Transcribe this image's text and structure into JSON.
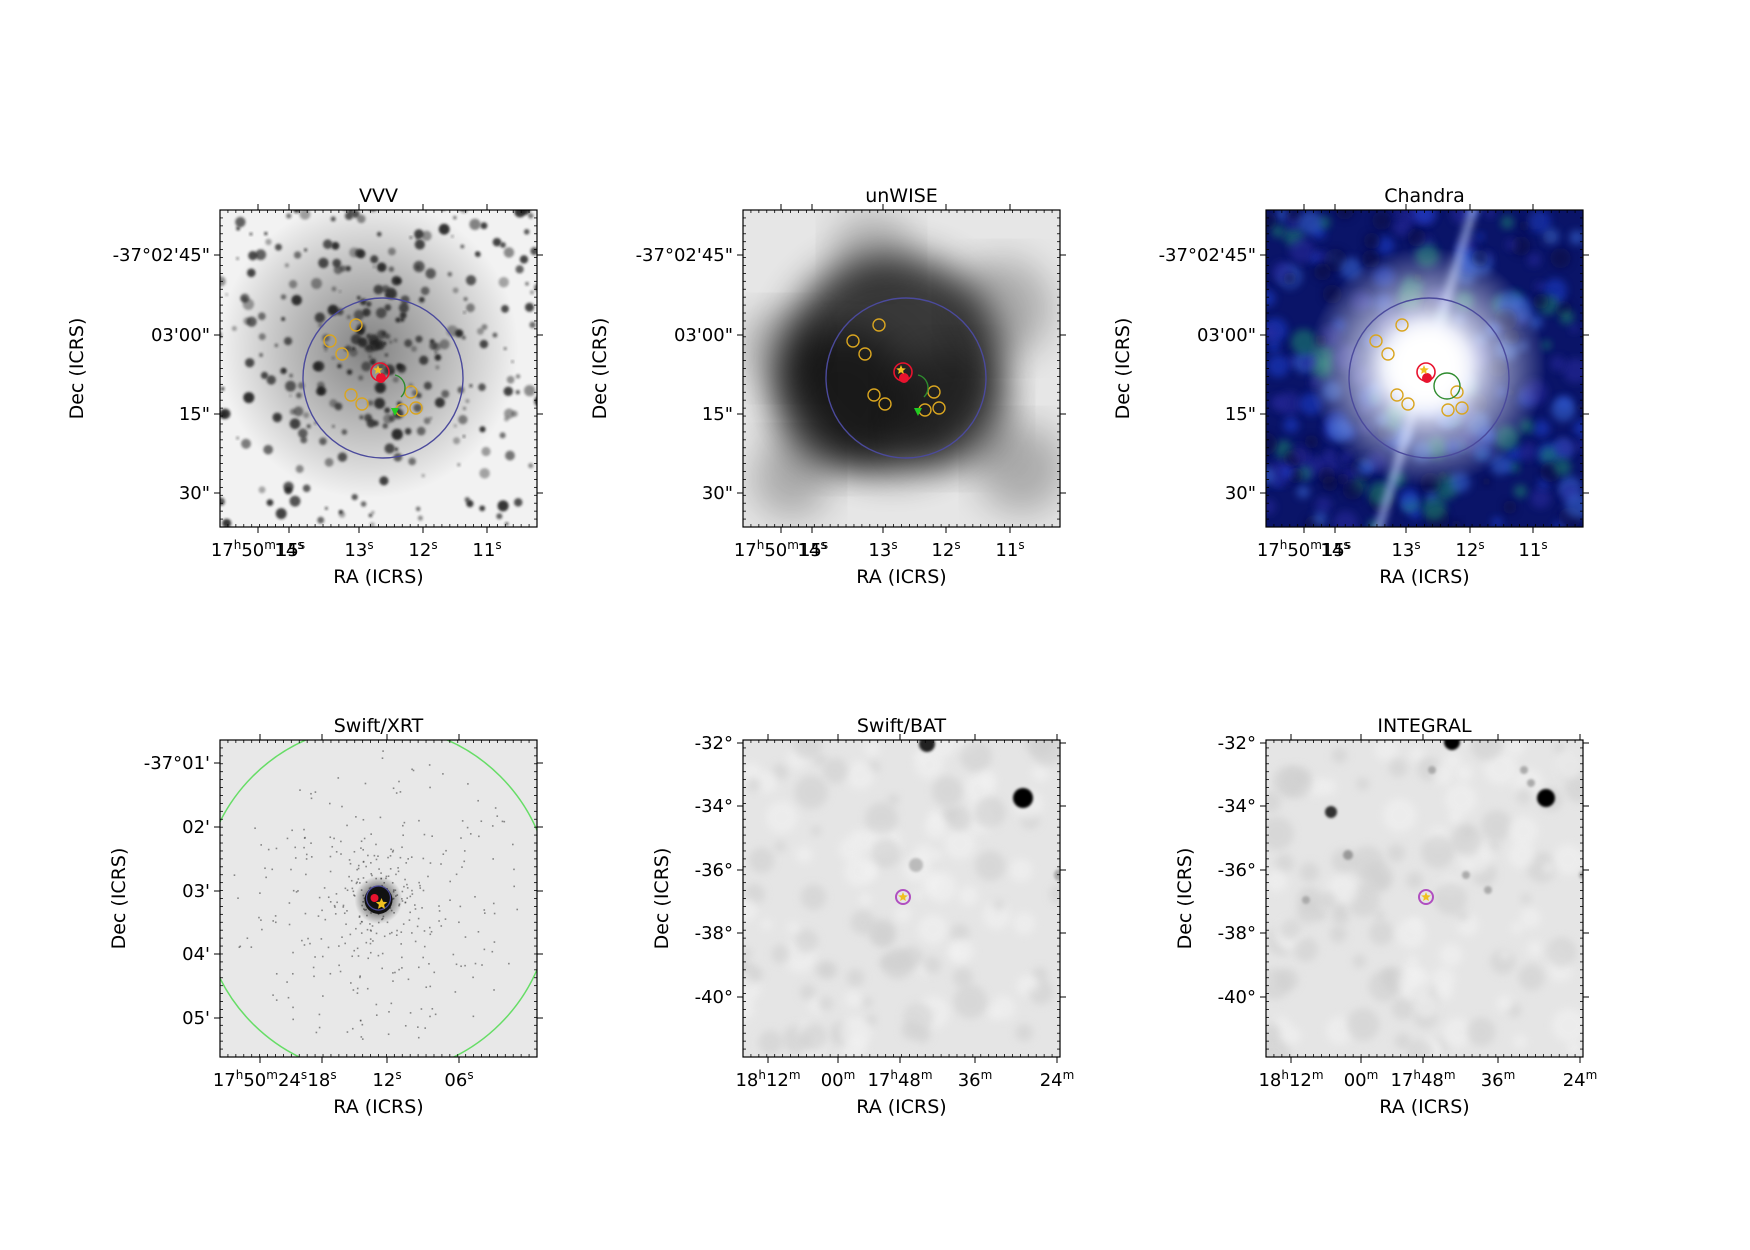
{
  "figure": {
    "panels": [
      {
        "id": "vvv",
        "title": "VVV",
        "style": "optical",
        "xlabel": "RA (ICRS)",
        "ylabel": "Dec (ICRS)",
        "yticks": [
          "-37°02'45\"",
          "03'00\"",
          "15\"",
          "30\""
        ],
        "xticks": [
          {
            "label": "17h50m15s",
            "main": "17",
            "sup1": "h",
            "mid": "50",
            "sup2": "m",
            "tail": "15",
            "sup3": "s"
          },
          {
            "label": "14s",
            "main": "14",
            "sup1": "s"
          },
          {
            "label": "13s",
            "main": "13",
            "sup1": "s"
          },
          {
            "label": "12s",
            "main": "12",
            "sup1": "s"
          },
          {
            "label": "11s",
            "main": "11",
            "sup1": "s"
          }
        ]
      },
      {
        "id": "unwise",
        "title": "unWISE",
        "style": "infrared",
        "xlabel": "RA (ICRS)",
        "ylabel": "Dec (ICRS)",
        "yticks": [
          "-37°02'45\"",
          "03'00\"",
          "15\"",
          "30\""
        ],
        "xticks": [
          {
            "label": "17h50m15s",
            "main": "17",
            "sup1": "h",
            "mid": "50",
            "sup2": "m",
            "tail": "15",
            "sup3": "s"
          },
          {
            "label": "14s",
            "main": "14",
            "sup1": "s"
          },
          {
            "label": "13s",
            "main": "13",
            "sup1": "s"
          },
          {
            "label": "12s",
            "main": "12",
            "sup1": "s"
          },
          {
            "label": "11s",
            "main": "11",
            "sup1": "s"
          }
        ]
      },
      {
        "id": "chandra",
        "title": "Chandra",
        "style": "xray-rgb",
        "xlabel": "RA (ICRS)",
        "ylabel": "Dec (ICRS)",
        "yticks": [
          "-37°02'45\"",
          "03'00\"",
          "15\"",
          "30\""
        ],
        "xticks": [
          {
            "label": "17h50m15s",
            "main": "17",
            "sup1": "h",
            "mid": "50",
            "sup2": "m",
            "tail": "15",
            "sup3": "s"
          },
          {
            "label": "14s",
            "main": "14",
            "sup1": "s"
          },
          {
            "label": "13s",
            "main": "13",
            "sup1": "s"
          },
          {
            "label": "12s",
            "main": "12",
            "sup1": "s"
          },
          {
            "label": "11s",
            "main": "11",
            "sup1": "s"
          }
        ]
      },
      {
        "id": "swift-xrt",
        "title": "Swift/XRT",
        "style": "xrt",
        "xlabel": "RA (ICRS)",
        "ylabel": "Dec (ICRS)",
        "yticks": [
          "-37°01'",
          "02'",
          "03'",
          "04'",
          "05'"
        ],
        "xticks": [
          {
            "label": "17h50m24s",
            "main": "17",
            "sup1": "h",
            "mid": "50",
            "sup2": "m",
            "tail": "24",
            "sup3": "s"
          },
          {
            "label": "18s",
            "main": "18",
            "sup1": "s"
          },
          {
            "label": "12s",
            "main": "12",
            "sup1": "s"
          },
          {
            "label": "06s",
            "main": "06",
            "sup1": "s"
          }
        ]
      },
      {
        "id": "swift-bat",
        "title": "Swift/BAT",
        "style": "bat",
        "xlabel": "RA (ICRS)",
        "ylabel": "Dec (ICRS)",
        "yticks": [
          "-32°",
          "-34°",
          "-36°",
          "-38°",
          "-40°"
        ],
        "xticks": [
          {
            "label": "18h12m",
            "main": "18",
            "sup1": "h",
            "mid": "12",
            "sup2": "m"
          },
          {
            "label": "00m",
            "main": "00",
            "sup1": "m"
          },
          {
            "label": "17h48m",
            "main": "17",
            "sup1": "h",
            "mid": "48",
            "sup2": "m"
          },
          {
            "label": "36m",
            "main": "36",
            "sup1": "m"
          },
          {
            "label": "24m",
            "main": "24",
            "sup1": "m"
          }
        ]
      },
      {
        "id": "integral",
        "title": "INTEGRAL",
        "style": "integral",
        "xlabel": "RA (ICRS)",
        "ylabel": "Dec (ICRS)",
        "yticks": [
          "-32°",
          "-34°",
          "-36°",
          "-38°",
          "-40°"
        ],
        "xticks": [
          {
            "label": "18h12m",
            "main": "18",
            "sup1": "h",
            "mid": "12",
            "sup2": "m"
          },
          {
            "label": "00m",
            "main": "00",
            "sup1": "m"
          },
          {
            "label": "17h48m",
            "main": "17",
            "sup1": "h",
            "mid": "48",
            "sup2": "m"
          },
          {
            "label": "36m",
            "main": "36",
            "sup1": "m"
          },
          {
            "label": "24m",
            "main": "24",
            "sup1": "m"
          }
        ]
      }
    ],
    "colors": {
      "error_circle_large": "#4b4a9c",
      "yellow_markers": "#d9a520",
      "red_marker": "#e8132e",
      "green_marker": "#2e8b2e",
      "green_triangle": "#22cc22",
      "star_marker": "#f0c020",
      "xrt_circle": "#66dd66",
      "magenta_marker": "#b04fc0"
    }
  }
}
